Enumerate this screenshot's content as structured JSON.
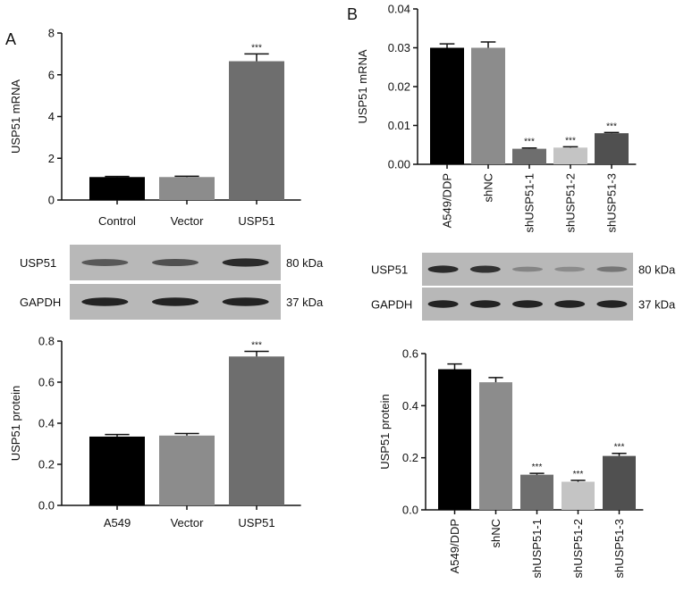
{
  "panels": [
    {
      "letter": "A"
    },
    {
      "letter": "B"
    }
  ],
  "blots": [
    {
      "rows": [
        {
          "label": "USP51",
          "size": "80 kDa",
          "bands": [
            0.55,
            0.6,
            0.85
          ]
        },
        {
          "label": "GAPDH",
          "size": "37 kDa",
          "bands": [
            0.9,
            0.9,
            0.9
          ]
        }
      ]
    },
    {
      "rows": [
        {
          "label": "USP51",
          "size": "80 kDa",
          "bands": [
            0.85,
            0.8,
            0.25,
            0.2,
            0.35
          ]
        },
        {
          "label": "GAPDH",
          "size": "37 kDa",
          "bands": [
            0.9,
            0.9,
            0.9,
            0.9,
            0.9
          ]
        }
      ]
    }
  ],
  "chart_data": [
    {
      "type": "bar",
      "title": "",
      "ylabel": "USP51 mRNA",
      "xlabel": "",
      "ylim": [
        0,
        8
      ],
      "yticks": [
        "0",
        "2",
        "4",
        "6",
        "8"
      ],
      "categories": [
        "Control",
        "Vector",
        "USP51"
      ],
      "values": [
        1.1,
        1.1,
        6.65
      ],
      "errors": [
        0.03,
        0.04,
        0.35
      ],
      "significance": [
        "",
        "",
        "***"
      ],
      "colors": [
        "#000000",
        "#8c8c8c",
        "#6e6e6e"
      ],
      "xlabel_rotation": 0,
      "grid": false
    },
    {
      "type": "bar",
      "title": "",
      "ylabel": "USP51 protein",
      "xlabel": "",
      "ylim": [
        0,
        0.8
      ],
      "yticks": [
        "0.0",
        "0.2",
        "0.4",
        "0.6",
        "0.8"
      ],
      "categories": [
        "A549",
        "Vector",
        "USP51"
      ],
      "values": [
        0.335,
        0.34,
        0.725
      ],
      "errors": [
        0.01,
        0.01,
        0.025
      ],
      "significance": [
        "",
        "",
        "***"
      ],
      "colors": [
        "#000000",
        "#8c8c8c",
        "#6e6e6e"
      ],
      "xlabel_rotation": 0,
      "grid": false
    },
    {
      "type": "bar",
      "title": "",
      "ylabel": "USP51 mRNA",
      "xlabel": "",
      "ylim": [
        0,
        0.04
      ],
      "yticks": [
        "0.00",
        "0.01",
        "0.02",
        "0.03",
        "0.04"
      ],
      "categories": [
        "A549/DDP",
        "shNC",
        "shUSP51-1",
        "shUSP51-2",
        "shUSP51-3"
      ],
      "values": [
        0.03,
        0.03,
        0.004,
        0.0043,
        0.008
      ],
      "errors": [
        0.001,
        0.0015,
        0.0002,
        0.0002,
        0.0002
      ],
      "significance": [
        "",
        "",
        "***",
        "***",
        "***"
      ],
      "colors": [
        "#000000",
        "#8c8c8c",
        "#6e6e6e",
        "#c4c4c4",
        "#505050"
      ],
      "xlabel_rotation": -90,
      "grid": false
    },
    {
      "type": "bar",
      "title": "",
      "ylabel": "USP51 protein",
      "xlabel": "",
      "ylim": [
        0,
        0.6
      ],
      "yticks": [
        "0.0",
        "0.2",
        "0.4",
        "0.6"
      ],
      "categories": [
        "A549/DDP",
        "shNC",
        "shUSP51-1",
        "shUSP51-2",
        "shUSP51-3"
      ],
      "values": [
        0.54,
        0.49,
        0.135,
        0.108,
        0.207
      ],
      "errors": [
        0.02,
        0.018,
        0.005,
        0.005,
        0.01
      ],
      "significance": [
        "",
        "",
        "***",
        "***",
        "***"
      ],
      "colors": [
        "#000000",
        "#8c8c8c",
        "#6e6e6e",
        "#c4c4c4",
        "#505050"
      ],
      "xlabel_rotation": -90,
      "grid": false
    }
  ]
}
